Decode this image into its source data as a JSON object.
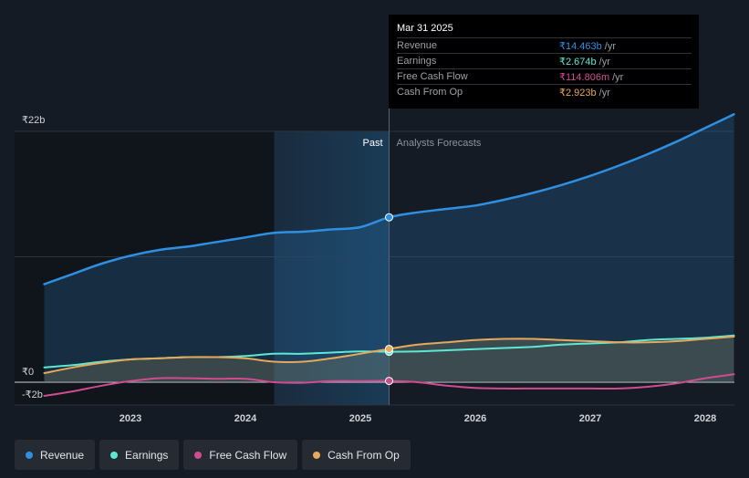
{
  "chart_data": {
    "type": "line",
    "x_range": [
      2022.2,
      2028.25
    ],
    "y_range": [
      -2,
      22
    ],
    "y_tick_labels": [
      {
        "value": 22,
        "label": "₹22b"
      },
      {
        "value": 0,
        "label": "₹0"
      },
      {
        "value": -2,
        "label": "-₹2b"
      }
    ],
    "x_tick_labels": [
      {
        "value": 2023,
        "label": "2023"
      },
      {
        "value": 2024,
        "label": "2024"
      },
      {
        "value": 2025,
        "label": "2025"
      },
      {
        "value": 2026,
        "label": "2026"
      },
      {
        "value": 2027,
        "label": "2027"
      },
      {
        "value": 2028,
        "label": "2028"
      }
    ],
    "gridlines": [
      22,
      11,
      0
    ],
    "highlight_start": 2024.25,
    "divider_x": 2025.25,
    "past_label": "Past",
    "forecast_label": "Analysts Forecasts",
    "series": [
      {
        "name": "Revenue",
        "color": "#2f8fe0",
        "area": true,
        "points": [
          [
            2022.25,
            8.6
          ],
          [
            2022.5,
            9.5
          ],
          [
            2022.75,
            10.4
          ],
          [
            2023.0,
            11.1
          ],
          [
            2023.25,
            11.6
          ],
          [
            2023.5,
            11.9
          ],
          [
            2023.75,
            12.3
          ],
          [
            2024.0,
            12.7
          ],
          [
            2024.25,
            13.1
          ],
          [
            2024.5,
            13.2
          ],
          [
            2024.75,
            13.4
          ],
          [
            2025.0,
            13.6
          ],
          [
            2025.25,
            14.463
          ],
          [
            2025.5,
            14.9
          ],
          [
            2025.75,
            15.2
          ],
          [
            2026.0,
            15.5
          ],
          [
            2026.25,
            16.0
          ],
          [
            2026.5,
            16.6
          ],
          [
            2026.75,
            17.3
          ],
          [
            2027.0,
            18.1
          ],
          [
            2027.25,
            19.0
          ],
          [
            2027.5,
            20.0
          ],
          [
            2027.75,
            21.1
          ],
          [
            2028.0,
            22.3
          ],
          [
            2028.25,
            23.5
          ]
        ]
      },
      {
        "name": "Earnings",
        "color": "#5de8d6",
        "area": false,
        "points": [
          [
            2022.25,
            1.3
          ],
          [
            2022.5,
            1.5
          ],
          [
            2022.75,
            1.8
          ],
          [
            2023.0,
            2.0
          ],
          [
            2023.25,
            2.1
          ],
          [
            2023.5,
            2.2
          ],
          [
            2023.75,
            2.2
          ],
          [
            2024.0,
            2.3
          ],
          [
            2024.25,
            2.5
          ],
          [
            2024.5,
            2.5
          ],
          [
            2024.75,
            2.6
          ],
          [
            2025.0,
            2.7
          ],
          [
            2025.25,
            2.674
          ],
          [
            2025.5,
            2.7
          ],
          [
            2025.75,
            2.8
          ],
          [
            2026.0,
            2.9
          ],
          [
            2026.25,
            3.0
          ],
          [
            2026.5,
            3.1
          ],
          [
            2026.75,
            3.3
          ],
          [
            2027.0,
            3.4
          ],
          [
            2027.25,
            3.5
          ],
          [
            2027.5,
            3.7
          ],
          [
            2027.75,
            3.8
          ],
          [
            2028.0,
            3.9
          ],
          [
            2028.25,
            4.1
          ]
        ]
      },
      {
        "name": "Free Cash Flow",
        "color": "#d14b91",
        "area": false,
        "points": [
          [
            2022.25,
            -1.2
          ],
          [
            2022.5,
            -0.8
          ],
          [
            2022.75,
            -0.3
          ],
          [
            2023.0,
            0.1
          ],
          [
            2023.25,
            0.35
          ],
          [
            2023.5,
            0.35
          ],
          [
            2023.75,
            0.3
          ],
          [
            2024.0,
            0.3
          ],
          [
            2024.25,
            0.0
          ],
          [
            2024.5,
            -0.05
          ],
          [
            2024.75,
            0.1
          ],
          [
            2025.0,
            0.1
          ],
          [
            2025.25,
            0.115
          ],
          [
            2025.5,
            0.0
          ],
          [
            2025.75,
            -0.3
          ],
          [
            2026.0,
            -0.5
          ],
          [
            2026.25,
            -0.55
          ],
          [
            2026.5,
            -0.55
          ],
          [
            2026.75,
            -0.55
          ],
          [
            2027.0,
            -0.55
          ],
          [
            2027.25,
            -0.55
          ],
          [
            2027.5,
            -0.4
          ],
          [
            2027.75,
            -0.1
          ],
          [
            2028.0,
            0.35
          ],
          [
            2028.25,
            0.7
          ]
        ]
      },
      {
        "name": "Cash From Op",
        "color": "#e6a95a",
        "area": true,
        "points": [
          [
            2022.25,
            0.8
          ],
          [
            2022.5,
            1.3
          ],
          [
            2022.75,
            1.7
          ],
          [
            2023.0,
            2.0
          ],
          [
            2023.25,
            2.1
          ],
          [
            2023.5,
            2.2
          ],
          [
            2023.75,
            2.2
          ],
          [
            2024.0,
            2.1
          ],
          [
            2024.25,
            1.8
          ],
          [
            2024.5,
            1.8
          ],
          [
            2024.75,
            2.1
          ],
          [
            2025.0,
            2.5
          ],
          [
            2025.25,
            2.923
          ],
          [
            2025.5,
            3.3
          ],
          [
            2025.75,
            3.5
          ],
          [
            2026.0,
            3.7
          ],
          [
            2026.25,
            3.8
          ],
          [
            2026.5,
            3.8
          ],
          [
            2026.75,
            3.7
          ],
          [
            2027.0,
            3.6
          ],
          [
            2027.25,
            3.5
          ],
          [
            2027.5,
            3.5
          ],
          [
            2027.75,
            3.6
          ],
          [
            2028.0,
            3.8
          ],
          [
            2028.25,
            4.0
          ]
        ]
      }
    ]
  },
  "tooltip": {
    "date": "Mar 31 2025",
    "rows": [
      {
        "label": "Revenue",
        "value": "₹14.463b",
        "unit": "/yr",
        "color": "#2f8fe0"
      },
      {
        "label": "Earnings",
        "value": "₹2.674b",
        "unit": "/yr",
        "color": "#5de8d6"
      },
      {
        "label": "Free Cash Flow",
        "value": "₹114.806m",
        "unit": "/yr",
        "color": "#d14b91"
      },
      {
        "label": "Cash From Op",
        "value": "₹2.923b",
        "unit": "/yr",
        "color": "#e6a95a"
      }
    ]
  },
  "legend": [
    {
      "label": "Revenue",
      "color": "#2f8fe0"
    },
    {
      "label": "Earnings",
      "color": "#5de8d6"
    },
    {
      "label": "Free Cash Flow",
      "color": "#d14b91"
    },
    {
      "label": "Cash From Op",
      "color": "#e6a95a"
    }
  ]
}
